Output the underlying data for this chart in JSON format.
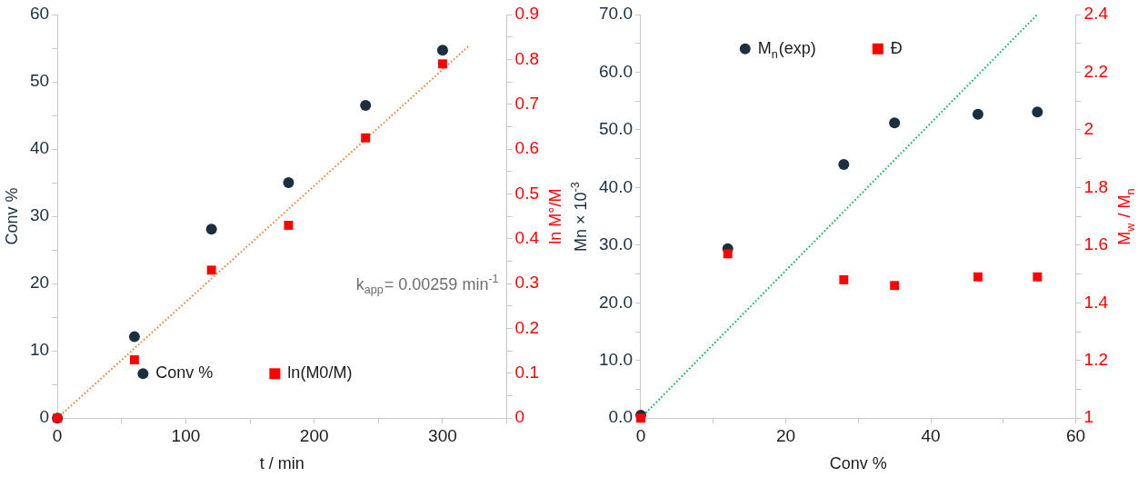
{
  "chart_data": [
    {
      "type": "scatter",
      "xlabel": "t / min",
      "ylabel": "Conv %",
      "y2label": "ln M°/M",
      "legend": "bottom",
      "grid": false,
      "xlim": [
        0,
        350
      ],
      "xticks": [
        0,
        {
          "value": 50,
          "label": null
        },
        100,
        {
          "value": 150,
          "label": null
        },
        200,
        {
          "value": 250,
          "label": null
        },
        300,
        {
          "value": 350,
          "label": null
        }
      ],
      "ylim": [
        0,
        60
      ],
      "yticks": [
        0,
        {
          "value": 5,
          "label": null
        },
        10,
        {
          "value": 15,
          "label": null
        },
        20,
        {
          "value": 25,
          "label": null
        },
        30,
        {
          "value": 35,
          "label": null
        },
        40,
        {
          "value": 45,
          "label": null
        },
        50,
        {
          "value": 55,
          "label": null
        },
        60
      ],
      "y2lim": [
        0,
        0.9
      ],
      "y2ticks": [
        0,
        {
          "value": 0.05,
          "label": null
        },
        0.1,
        {
          "value": 0.15,
          "label": null
        },
        0.2,
        {
          "value": 0.25,
          "label": null
        },
        0.3,
        {
          "value": 0.35,
          "label": null
        },
        0.4,
        {
          "value": 0.45,
          "label": null
        },
        0.5,
        {
          "value": 0.55,
          "label": null
        },
        0.6,
        {
          "value": 0.65,
          "label": null
        },
        0.7,
        {
          "value": 0.75,
          "label": null
        },
        0.8,
        {
          "value": 0.85,
          "label": null
        },
        0.9
      ],
      "x": [
        0,
        60,
        120,
        180,
        240,
        300
      ],
      "series": [
        {
          "name": "Conv %",
          "color": "#1b2f3e",
          "marker": "circle",
          "values": [
            0,
            12.1,
            28.1,
            35.0,
            46.5,
            54.7
          ]
        },
        {
          "name": "ln(M0/M)",
          "color": "#ff0000",
          "marker": "square",
          "axis": "y2",
          "values": [
            0,
            0.13,
            0.33,
            0.43,
            0.625,
            0.79
          ]
        },
        {
          "type": "line",
          "color": "#ed7d31",
          "marker": "none",
          "line_style": "dotted",
          "axis": "y2",
          "x": [
            0,
            320
          ],
          "values": [
            0,
            0.829
          ]
        }
      ],
      "annotations": [
        "k$_{app}$= 0.00259 min$^{-1}$"
      ]
    },
    {
      "type": "scatter",
      "xlabel": "Conv %",
      "ylabel": "Mn × 10$^{-3}$",
      "y2label": "M$_{w}$ / M$_{n}$",
      "legend": "top",
      "grid": false,
      "xlim": [
        0,
        60
      ],
      "xticks": [
        0,
        {
          "value": 10,
          "label": null
        },
        20,
        {
          "value": 30,
          "label": null
        },
        40,
        {
          "value": 50,
          "label": null
        },
        60
      ],
      "ylim": [
        0,
        70
      ],
      "yticks": [
        {
          "value": 0,
          "label": "0.0"
        },
        {
          "value": 5,
          "label": null
        },
        {
          "value": 10,
          "label": "10.0"
        },
        {
          "value": 15,
          "label": null
        },
        {
          "value": 20,
          "label": "20.0"
        },
        {
          "value": 25,
          "label": null
        },
        {
          "value": 30,
          "label": "30.0"
        },
        {
          "value": 35,
          "label": null
        },
        {
          "value": 40,
          "label": "40.0"
        },
        {
          "value": 45,
          "label": null
        },
        {
          "value": 50,
          "label": "50.0"
        },
        {
          "value": 55,
          "label": null
        },
        {
          "value": 60,
          "label": "60.0"
        },
        {
          "value": 65,
          "label": null
        },
        {
          "value": 70,
          "label": "70.0"
        }
      ],
      "y2lim": [
        1,
        2.4
      ],
      "y2ticks": [
        1,
        {
          "value": 1.1,
          "label": null
        },
        1.2,
        {
          "value": 1.3,
          "label": null
        },
        1.4,
        {
          "value": 1.5,
          "label": null
        },
        1.6,
        {
          "value": 1.7,
          "label": null
        },
        1.8,
        {
          "value": 1.9,
          "label": null
        },
        2,
        {
          "value": 2.1,
          "label": null
        },
        2.2,
        {
          "value": 2.3,
          "label": null
        },
        2.4
      ],
      "x": [
        0,
        12,
        28,
        35,
        46.5,
        54.7
      ],
      "series": [
        {
          "name": "M$_{n}$(exp)",
          "color": "#1b2f3e",
          "marker": "circle",
          "values": [
            0.5,
            29.4,
            44.0,
            51.2,
            52.7,
            53.1
          ]
        },
        {
          "name": "Đ",
          "color": "#ff0000",
          "marker": "square",
          "axis": "y2",
          "values": [
            1.0,
            1.57,
            1.48,
            1.46,
            1.49,
            1.49
          ]
        },
        {
          "type": "line",
          "color": "#00b050",
          "marker": "none",
          "line_style": "dotted",
          "x": [
            0,
            54.7
          ],
          "values": [
            0,
            70
          ]
        }
      ]
    }
  ]
}
